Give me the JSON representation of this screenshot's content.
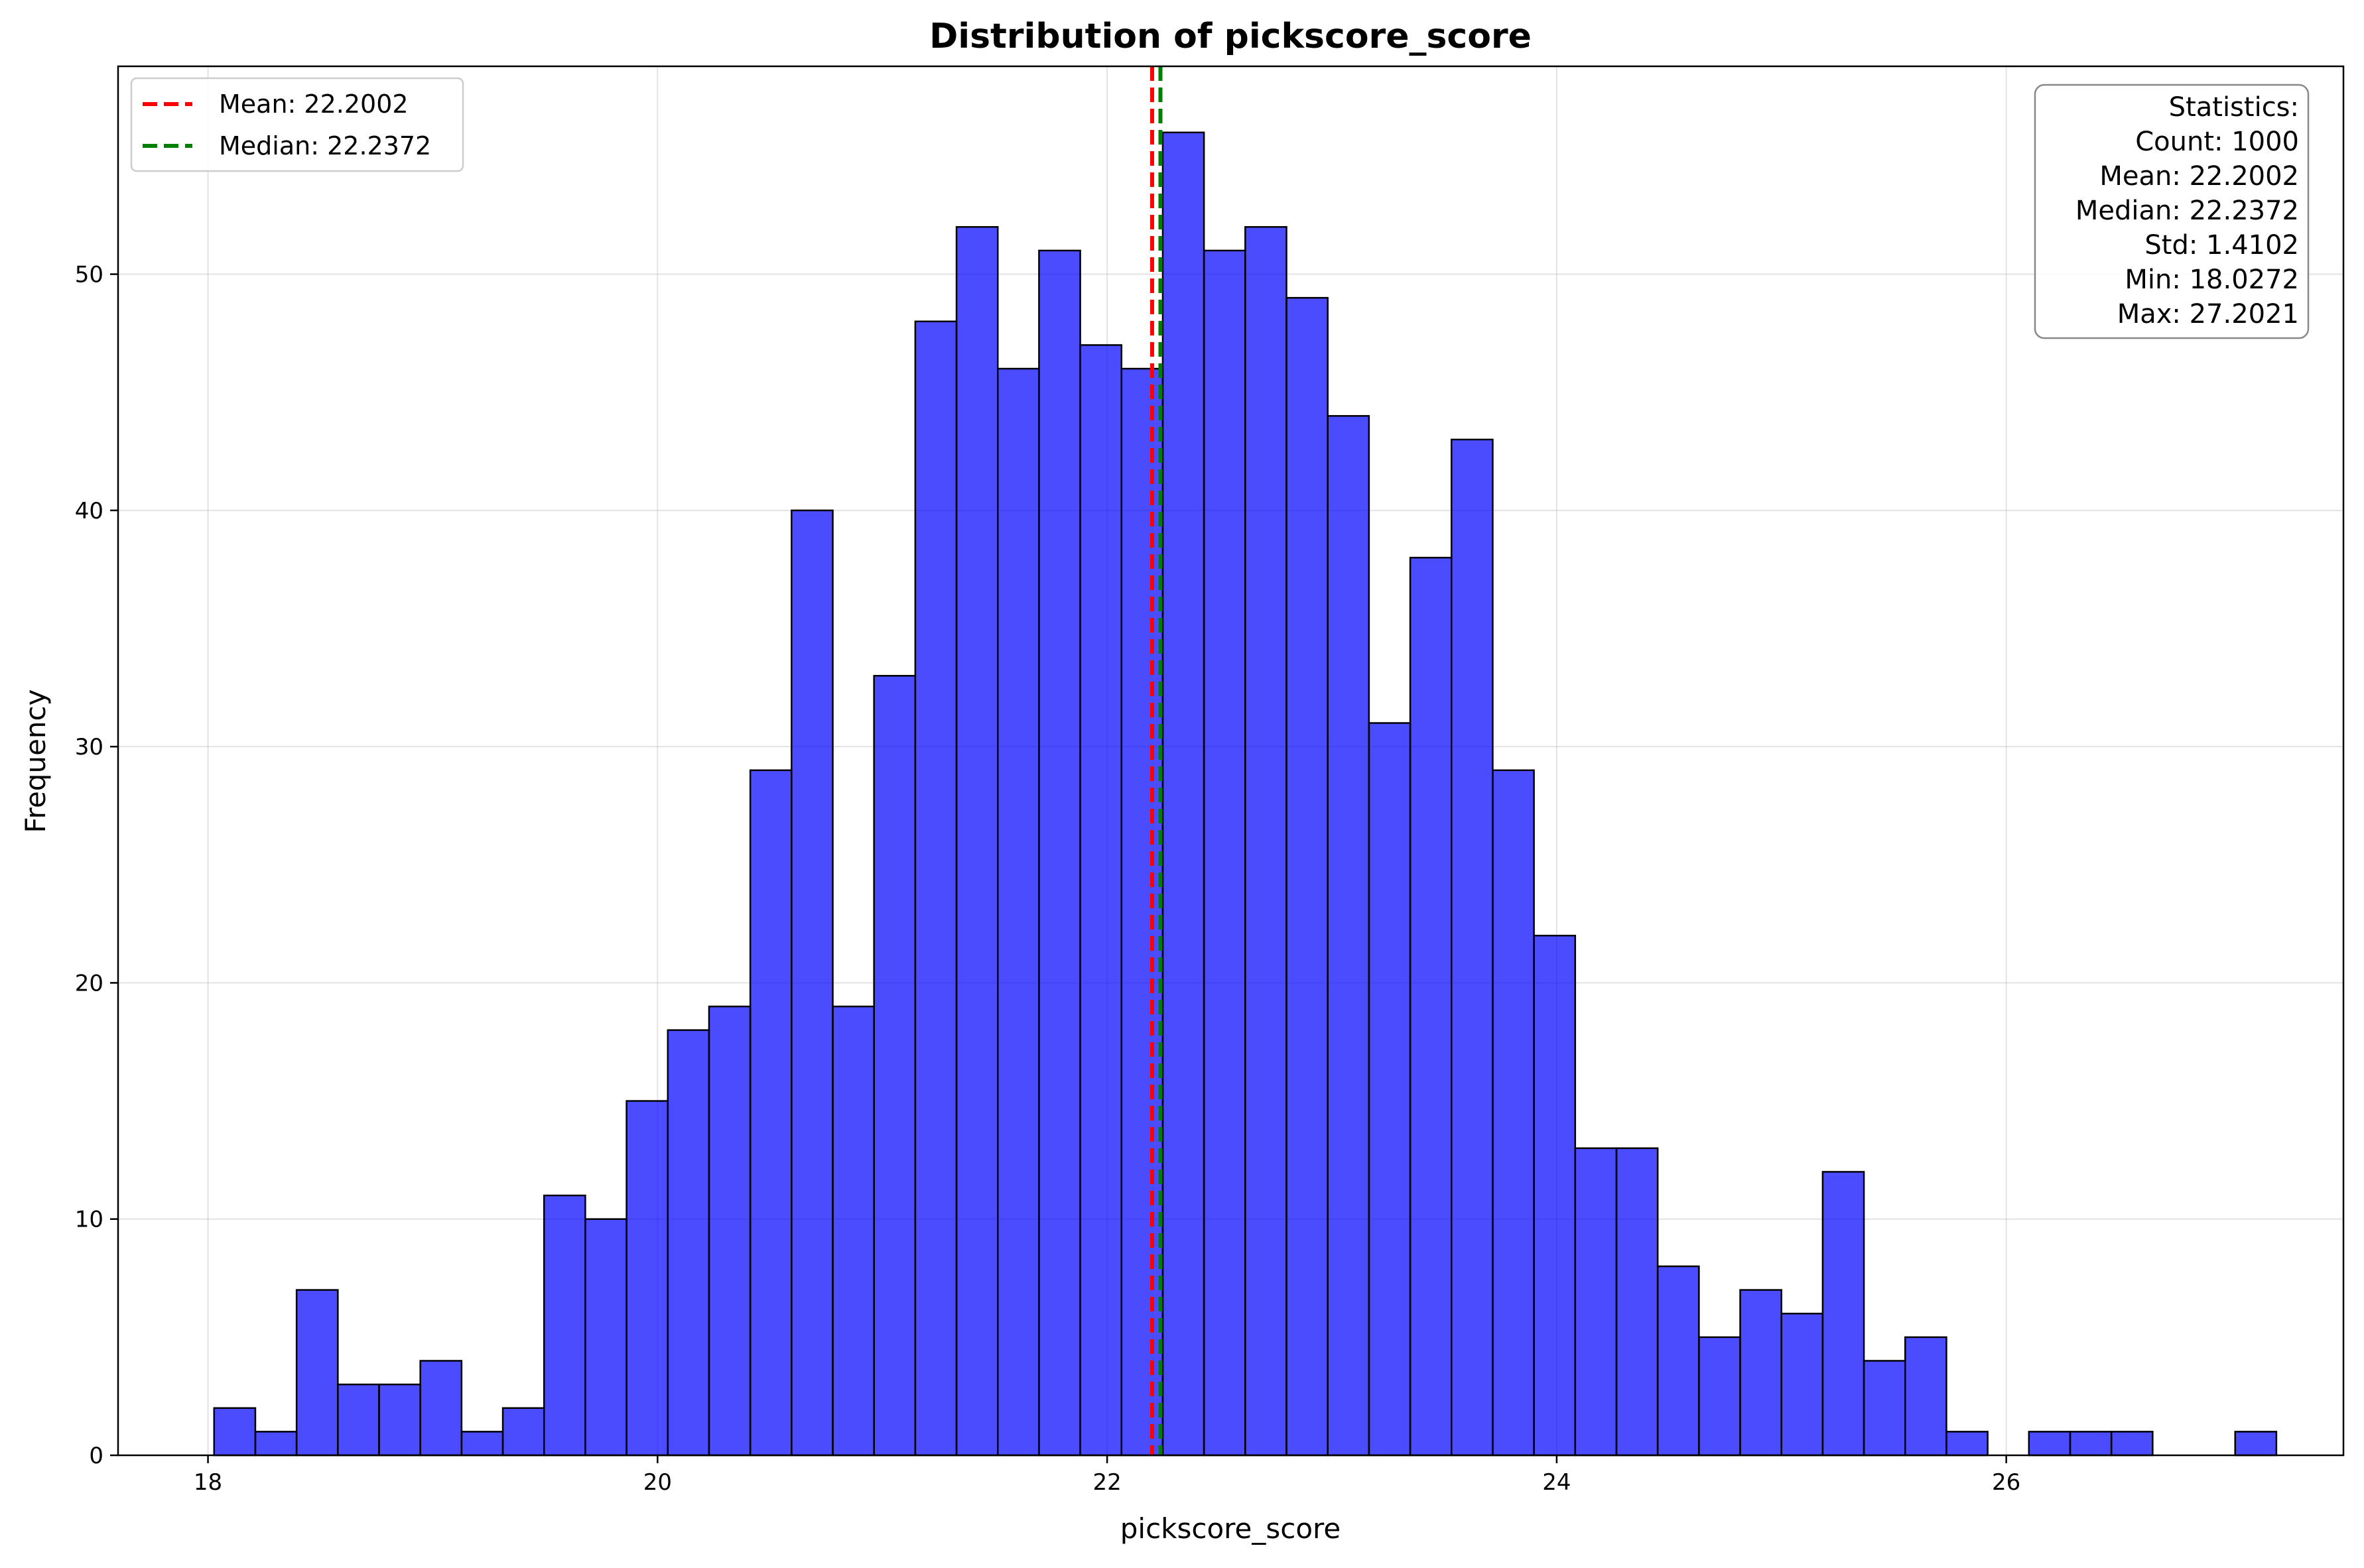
{
  "chart_data": {
    "type": "bar",
    "title": "Distribution of pickscore_score",
    "xlabel": "pickscore_score",
    "ylabel": "Frequency",
    "xlim": [
      17.6,
      27.5
    ],
    "ylim": [
      0,
      58.8
    ],
    "xticks": [
      18,
      20,
      22,
      24,
      26
    ],
    "yticks": [
      0,
      10,
      20,
      30,
      40,
      50
    ],
    "grid": true,
    "bin_start": 18.0272,
    "bin_width": 0.18349,
    "counts": [
      2,
      1,
      7,
      3,
      3,
      4,
      1,
      2,
      11,
      10,
      15,
      18,
      19,
      29,
      40,
      19,
      33,
      48,
      52,
      46,
      51,
      47,
      46,
      56,
      51,
      52,
      49,
      44,
      31,
      38,
      43,
      29,
      22,
      13,
      13,
      8,
      5,
      7,
      6,
      12,
      4,
      5,
      1,
      0,
      1,
      1,
      1,
      0,
      0,
      1
    ],
    "bar_color": "#0000ff",
    "bar_edge_color": "#000000",
    "mean_line": {
      "value": 22.2002,
      "color": "#ff0000",
      "label": "Mean: 22.2002"
    },
    "median_line": {
      "value": 22.2372,
      "color": "#008000",
      "label": "Median: 22.2372"
    },
    "legend_position": "upper-left",
    "stats_box": {
      "position": "upper-right",
      "lines": [
        "Statistics:",
        "Count: 1000",
        "Mean: 22.2002",
        "Median: 22.2372",
        "Std: 1.4102",
        "Min: 18.0272",
        "Max: 27.2021"
      ]
    }
  }
}
